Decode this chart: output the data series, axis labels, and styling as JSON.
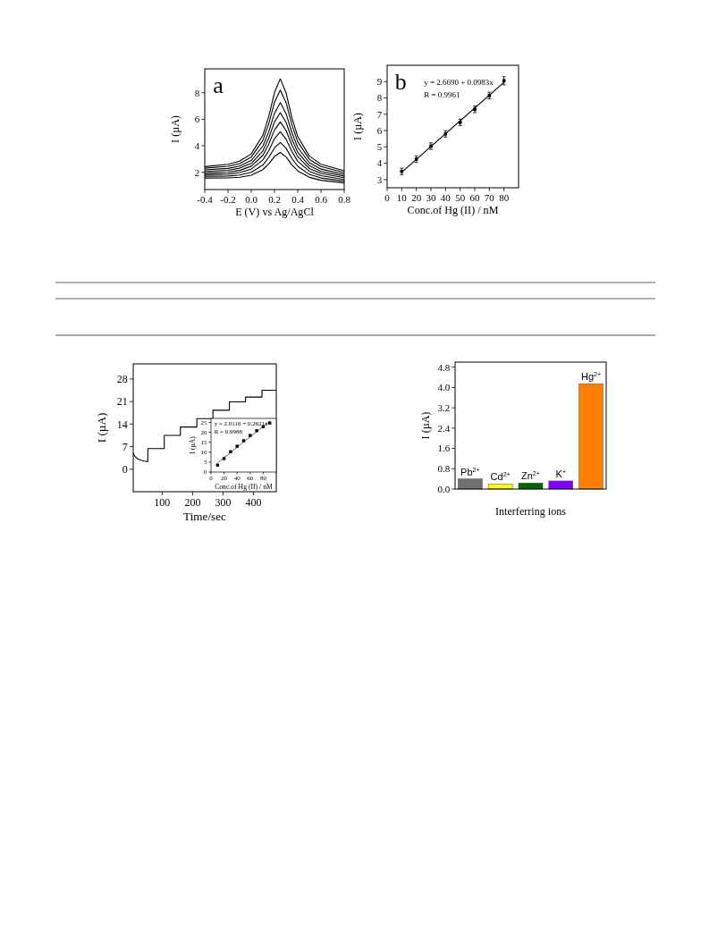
{
  "chart_data": [
    {
      "type": "line",
      "xlabel": "E (V) vs Ag/AgCl",
      "ylabel": "I (µA)",
      "annotations": [
        "a"
      ],
      "xlim": [
        -0.4,
        0.8
      ],
      "ylim": [
        0.7,
        9.8
      ],
      "xticks": [
        {
          "value": -0.4,
          "label": "-0.4"
        },
        {
          "value": -0.2,
          "label": "-0.2"
        },
        {
          "value": 0,
          "label": "0.0"
        },
        {
          "value": 0.2,
          "label": "0.2"
        },
        {
          "value": 0.4,
          "label": "0.4"
        },
        {
          "value": 0.6,
          "label": "0.6"
        },
        {
          "value": 0.8,
          "label": "0.8"
        }
      ],
      "yticks": [
        2,
        4,
        6,
        8
      ],
      "x": [
        -0.4,
        -0.2,
        -0.1,
        0,
        0.1,
        0.15,
        0.2,
        0.25,
        0.3,
        0.35,
        0.4,
        0.5,
        0.6,
        0.8
      ],
      "series": [
        {
          "color": "#000000",
          "values": [
            1.57,
            1.58,
            1.63,
            1.78,
            2.2,
            2.63,
            3.19,
            3.5,
            3.15,
            2.56,
            2.1,
            1.62,
            1.4,
            1.2
          ]
        },
        {
          "color": "#000000",
          "values": [
            1.7,
            1.72,
            1.8,
            2.0,
            2.55,
            3.11,
            3.84,
            4.25,
            3.81,
            3.04,
            2.45,
            1.84,
            1.57,
            1.33
          ]
        },
        {
          "color": "#000000",
          "values": [
            1.82,
            1.87,
            1.98,
            2.24,
            2.93,
            3.62,
            4.54,
            5.05,
            4.5,
            3.56,
            2.83,
            2.07,
            1.74,
            1.46
          ]
        },
        {
          "color": "#000000",
          "values": [
            1.94,
            2.01,
            2.14,
            2.46,
            3.28,
            4.11,
            5.19,
            5.8,
            5.15,
            4.04,
            3.18,
            2.29,
            1.91,
            1.59
          ]
        },
        {
          "color": "#000000",
          "values": [
            2.06,
            2.15,
            2.31,
            2.67,
            3.61,
            4.56,
            5.8,
            6.5,
            5.76,
            4.49,
            3.51,
            2.5,
            2.07,
            1.72
          ]
        },
        {
          "color": "#000000",
          "values": [
            2.18,
            2.29,
            2.47,
            2.89,
            3.97,
            5.04,
            6.45,
            7.25,
            6.42,
            4.98,
            3.87,
            2.72,
            2.24,
            1.85
          ]
        },
        {
          "color": "#000000",
          "values": [
            2.31,
            2.45,
            2.66,
            3.15,
            4.4,
            5.65,
            7.27,
            8.2,
            7.24,
            5.58,
            4.3,
            2.98,
            2.43,
            1.98
          ]
        },
        {
          "color": "#000000",
          "values": [
            2.43,
            2.6,
            2.84,
            3.39,
            4.79,
            6.19,
            8.01,
            9.05,
            7.98,
            6.12,
            4.69,
            3.22,
            2.61,
            2.12
          ]
        }
      ]
    },
    {
      "type": "scatter",
      "xlabel": "Conc.of Hg (II) / nM",
      "ylabel": "I (µA)",
      "annotations": [
        "b",
        "y = 2.6690 + 0.0983x",
        "R = 0.9961"
      ],
      "xlim": [
        0,
        90
      ],
      "ylim": [
        2.5,
        10
      ],
      "xticks": [
        0,
        10,
        20,
        30,
        40,
        50,
        60,
        70,
        80
      ],
      "yticks": [
        3,
        4,
        5,
        6,
        7,
        8,
        9
      ],
      "series": [
        {
          "type": "scatter",
          "marker": "square",
          "color": "#000000",
          "x": [
            10,
            20,
            30,
            40,
            50,
            60,
            70,
            80
          ],
          "values": [
            3.5,
            4.25,
            5.05,
            5.8,
            6.5,
            7.3,
            8.15,
            9.05
          ],
          "errors": [
            0.2,
            0.2,
            0.2,
            0.2,
            0.2,
            0.2,
            0.2,
            0.25
          ]
        },
        {
          "type": "line",
          "color": "#000000",
          "x": [
            10,
            80
          ],
          "values": [
            3.45,
            8.95
          ]
        }
      ]
    },
    {
      "type": "line",
      "xlabel": "Time/sec",
      "ylabel": "I (µA)",
      "xlim": [
        5,
        475
      ],
      "ylim": [
        -7,
        32.7
      ],
      "xticks": [
        100,
        200,
        300,
        400
      ],
      "yticks": [
        0,
        7,
        14,
        21,
        28
      ],
      "series": [
        {
          "color": "#000000",
          "x": [
            5,
            10,
            20,
            30,
            40,
            53,
            53,
            107,
            107,
            160,
            160,
            214,
            214,
            267,
            267,
            321,
            321,
            374,
            374,
            428,
            428,
            475
          ],
          "values": [
            5.0,
            4.0,
            3.2,
            2.8,
            2.5,
            2.4,
            6.4,
            6.4,
            10.5,
            10.5,
            13.1,
            13.1,
            15.7,
            15.7,
            18.3,
            18.3,
            20.9,
            20.9,
            22.4,
            22.4,
            24.5,
            24.5
          ]
        }
      ]
    },
    {
      "type": "scatter",
      "xlabel": "Conc.of Hg (II) / nM",
      "ylabel": "I (µA)",
      "annotations": [
        "y = 2.0116 + 0.2621x",
        "R = 0.9988"
      ],
      "xlim": [
        0,
        100
      ],
      "ylim": [
        0,
        27
      ],
      "xticks": [
        0,
        20,
        40,
        60,
        80
      ],
      "yticks": [
        0,
        5,
        10,
        15,
        20,
        25
      ],
      "series": [
        {
          "type": "scatter",
          "marker": "square",
          "color": "#000000",
          "x": [
            10,
            20,
            30,
            40,
            50,
            60,
            70,
            80,
            90
          ],
          "values": [
            3.5,
            6.8,
            10.2,
            13,
            15.8,
            18.4,
            20.8,
            22.8,
            24.7
          ]
        },
        {
          "type": "line",
          "color": "#000000",
          "x": [
            10,
            90
          ],
          "values": [
            4.6,
            25.6
          ]
        }
      ]
    },
    {
      "type": "bar",
      "xlabel": "Interferring ions",
      "ylabel": "I (µA)",
      "categories": [
        "Pb$^{2+}$",
        "Cd$^{2+}$",
        "Zn$^{2+}$",
        "K$^{+}$",
        "Hg$^{2+}$"
      ],
      "values": [
        0.4,
        0.2,
        0.24,
        0.32,
        4.15
      ],
      "colors": [
        "#707070",
        "#ffff00",
        "#006400",
        "#7f00ff",
        "#ff7f00"
      ],
      "ylim": [
        0,
        5
      ],
      "yticks": [
        {
          "value": 0,
          "label": "0.0"
        },
        {
          "value": 0.8,
          "label": "0.8"
        },
        {
          "value": 1.6,
          "label": "1.6"
        },
        {
          "value": 2.4,
          "label": "2.4"
        },
        {
          "value": 3.2,
          "label": "3.2"
        },
        {
          "value": 4.0,
          "label": "4.0"
        },
        {
          "value": 4.8,
          "label": "4.8"
        }
      ]
    }
  ]
}
